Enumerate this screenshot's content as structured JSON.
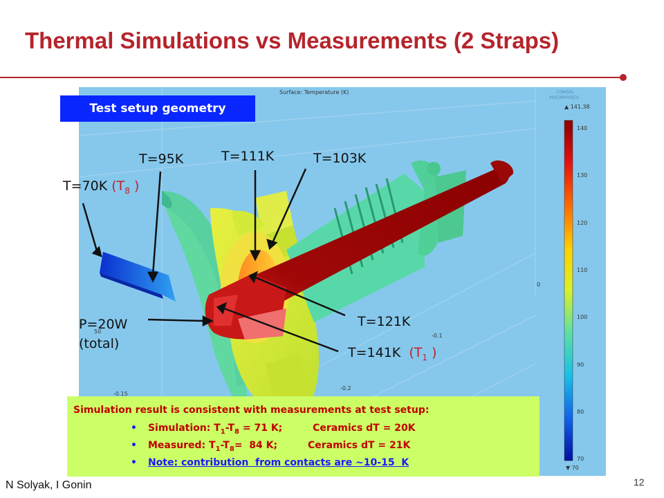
{
  "slide": {
    "title": "Thermal Simulations vs Measurements (2 Straps)",
    "author": "N Solyak, I Gonin",
    "page_number": "12"
  },
  "figure": {
    "setup_label": "Test setup geometry",
    "surface_caption": "Surface: Temperature (K)",
    "logo_text_1": "COMSOL",
    "logo_text_2": "MULTIPHYSICS",
    "colorbar": {
      "max_label": "▲ 141.38",
      "min_label": "▼ 70",
      "ticks": [
        "140",
        "130",
        "120",
        "110",
        "100",
        "90",
        "80",
        "70"
      ],
      "colors": [
        "#8b0000",
        "#e01010",
        "#ff6a00",
        "#ffd000",
        "#d8f02a",
        "#60e0a0",
        "#18c0e8",
        "#1060e8",
        "#0010a0"
      ]
    },
    "axis_labels": [
      "0",
      "-0.1",
      "-0.2",
      "50",
      "-0.15"
    ],
    "labels": {
      "t70": "T=70K",
      "t70_tag": "(T",
      "t70_sub": "8",
      "t70_close": ")",
      "t95": "T=95K",
      "t111": "T=111K",
      "t103": "T=103K",
      "t121": "T=121K",
      "t141": "T=141K",
      "t141_tag": "(T",
      "t141_sub": "1",
      "t141_close": ")",
      "p_line1": "P=20W",
      "p_line2": "(total)"
    }
  },
  "note": {
    "heading": "Simulation result is consistent with measurements at test setup:",
    "bullets": [
      {
        "a": "Simulation:    T",
        "s1": "1",
        "b": "-T",
        "s2": "8",
        "c": " = 71 K;         Ceramics dT = 20K"
      },
      {
        "a": "Measured:    T",
        "s1": "1",
        "b": "-T",
        "s2": "8",
        "c": "=  84 K;         Ceramics dT = 21K"
      },
      {
        "text": "Note: contribution  from contacts are ~10-15  K"
      }
    ]
  }
}
